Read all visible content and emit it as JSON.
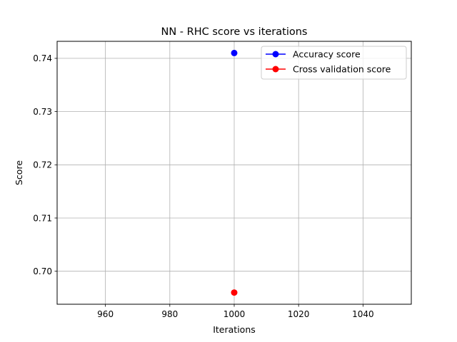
{
  "chart_data": {
    "type": "line",
    "title": "NN - RHC score vs iterations",
    "xlabel": "Iterations",
    "ylabel": "Score",
    "xlim": [
      945,
      1055
    ],
    "ylim": [
      0.6938,
      0.7432
    ],
    "xticks": [
      960,
      980,
      1000,
      1020,
      1040
    ],
    "yticks": [
      0.7,
      0.71,
      0.72,
      0.73,
      0.74
    ],
    "ytick_labels": [
      "0.70",
      "0.71",
      "0.72",
      "0.73",
      "0.74"
    ],
    "grid": true,
    "legend_position": "top-right",
    "series": [
      {
        "name": "Accuracy score",
        "color": "#0000ff",
        "marker": "circle",
        "x": [
          1000
        ],
        "y": [
          0.741
        ]
      },
      {
        "name": "Cross validation score",
        "color": "#ff0000",
        "marker": "circle",
        "x": [
          1000
        ],
        "y": [
          0.696
        ]
      }
    ]
  }
}
